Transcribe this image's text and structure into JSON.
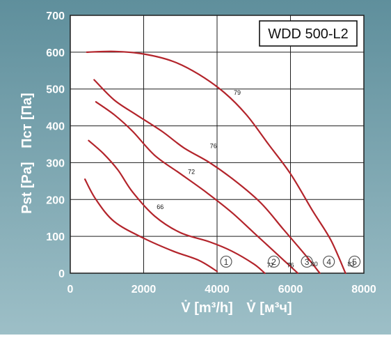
{
  "chart_data": {
    "type": "line",
    "title": "WDD 500-L2",
    "xlabel_parts": [
      "V̇ [m³/h]",
      "V̇ [м³ч]"
    ],
    "ylabel_parts": [
      "Pst [Pa]",
      "Пст [Па]"
    ],
    "xlim": [
      0,
      8000
    ],
    "ylim": [
      0,
      700
    ],
    "x_ticks": [
      "0",
      "2000",
      "4000",
      "6000",
      "8000"
    ],
    "y_ticks": [
      "0",
      "100",
      "200",
      "300",
      "400",
      "500",
      "600",
      "700"
    ],
    "grid": true,
    "colors": {
      "background_top": "#5f8f9c",
      "background_bottom": "#9dbfc7",
      "plot_background": "#ffffff",
      "curve": "#b3242b",
      "grid": "#1e1e1e",
      "text": "#ffffff",
      "marker": "#555555"
    },
    "series": [
      {
        "marker": "1",
        "points": [
          [
            400,
            255
          ],
          [
            700,
            200
          ],
          [
            1200,
            140
          ],
          [
            2000,
            95
          ],
          [
            2800,
            60
          ],
          [
            3500,
            35
          ],
          [
            4000,
            5
          ]
        ]
      },
      {
        "marker": "2",
        "points": [
          [
            500,
            360
          ],
          [
            900,
            325
          ],
          [
            1300,
            280
          ],
          [
            1700,
            220
          ],
          [
            2300,
            155
          ],
          [
            3000,
            110
          ],
          [
            3800,
            85
          ],
          [
            4400,
            60
          ],
          [
            5000,
            25
          ],
          [
            5300,
            0
          ]
        ]
      },
      {
        "marker": "3",
        "points": [
          [
            700,
            465
          ],
          [
            1200,
            430
          ],
          [
            1700,
            385
          ],
          [
            2300,
            320
          ],
          [
            3000,
            270
          ],
          [
            3700,
            220
          ],
          [
            4400,
            165
          ],
          [
            5000,
            110
          ],
          [
            5600,
            55
          ],
          [
            6200,
            0
          ]
        ]
      },
      {
        "marker": "4",
        "points": [
          [
            650,
            525
          ],
          [
            1200,
            470
          ],
          [
            1800,
            430
          ],
          [
            2500,
            385
          ],
          [
            3100,
            340
          ],
          [
            3800,
            300
          ],
          [
            4500,
            250
          ],
          [
            5200,
            190
          ],
          [
            5800,
            120
          ],
          [
            6400,
            50
          ],
          [
            6800,
            0
          ]
        ]
      },
      {
        "marker": "5",
        "points": [
          [
            450,
            600
          ],
          [
            1200,
            602
          ],
          [
            2000,
            595
          ],
          [
            2800,
            575
          ],
          [
            3500,
            540
          ],
          [
            4200,
            490
          ],
          [
            4800,
            430
          ],
          [
            5400,
            350
          ],
          [
            6000,
            270
          ],
          [
            6600,
            170
          ],
          [
            7100,
            90
          ],
          [
            7500,
            0
          ]
        ]
      }
    ],
    "curve_labels": [
      {
        "text": "66",
        "x": 2450,
        "y": 180
      },
      {
        "text": "72",
        "x": 3300,
        "y": 275
      },
      {
        "text": "76",
        "x": 3900,
        "y": 345
      },
      {
        "text": "79",
        "x": 4550,
        "y": 490
      },
      {
        "text": "72",
        "x": 5450,
        "y": 22
      },
      {
        "text": "76",
        "x": 6000,
        "y": 22
      },
      {
        "text": "80",
        "x": 6650,
        "y": 25
      },
      {
        "text": "83",
        "x": 7650,
        "y": 25
      }
    ]
  }
}
